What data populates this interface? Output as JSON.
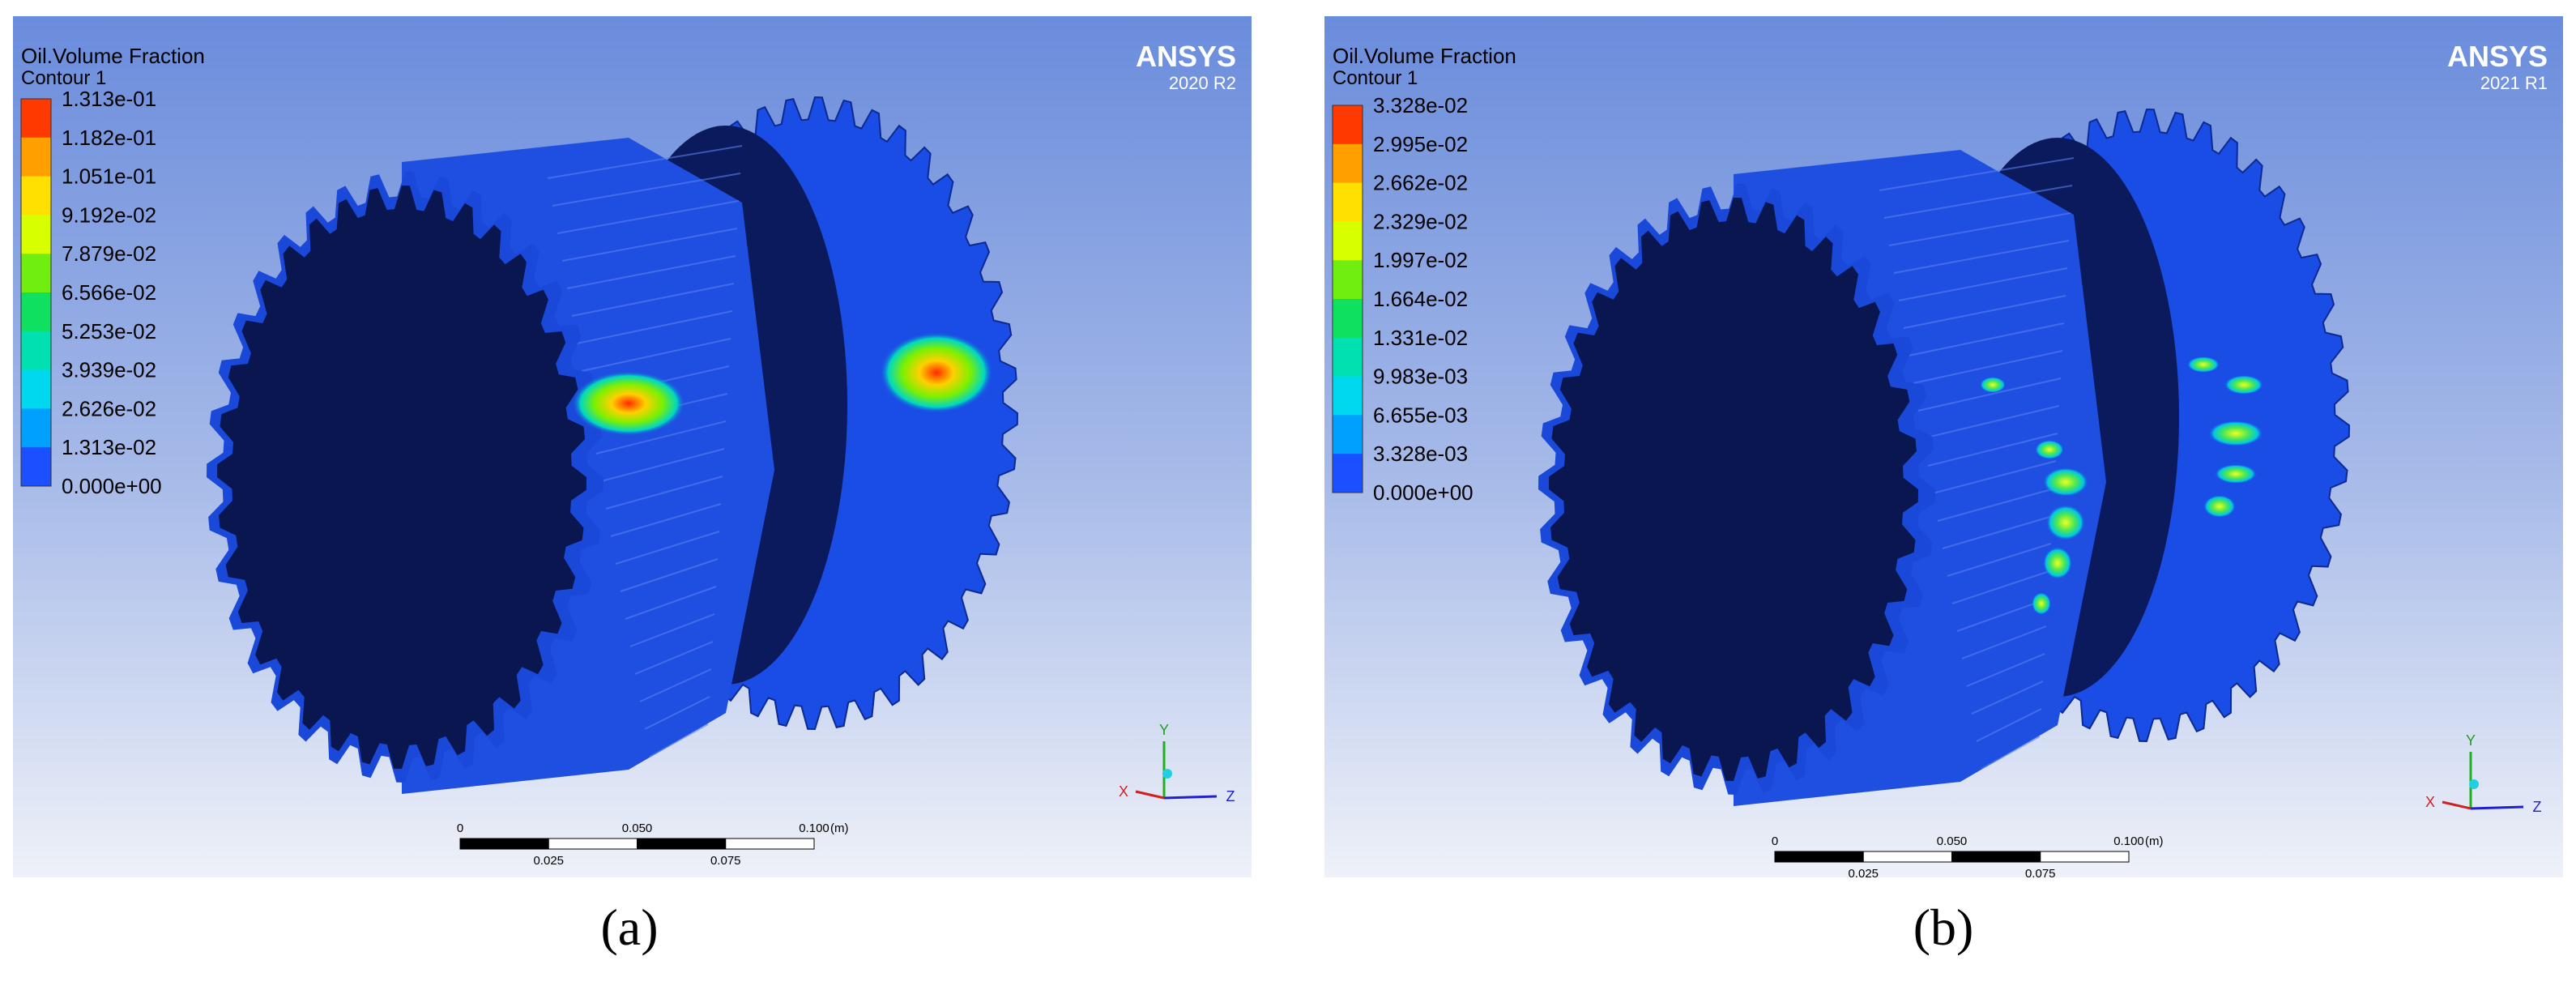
{
  "panels": [
    {
      "legend": {
        "title": "Oil.Volume Fraction",
        "contour": "Contour 1",
        "labels": [
          "1.313e-01",
          "1.182e-01",
          "1.051e-01",
          "9.192e-02",
          "7.879e-02",
          "6.566e-02",
          "5.253e-02",
          "3.939e-02",
          "2.626e-02",
          "1.313e-02",
          "0.000e+00"
        ]
      },
      "brand": "ANSYS",
      "version": "2020 R2",
      "scale": {
        "labels": [
          "0",
          "0.050",
          "0.100"
        ],
        "unit": "(m)",
        "minor_labels": [
          "0.025",
          "0.075"
        ]
      },
      "axes": {
        "y": "Y",
        "x": "X",
        "z": "Z"
      },
      "caption": "(a)"
    },
    {
      "legend": {
        "title": "Oil.Volume Fraction",
        "contour": "Contour 1",
        "labels": [
          "3.328e-02",
          "2.995e-02",
          "2.662e-02",
          "2.329e-02",
          "1.997e-02",
          "1.664e-02",
          "1.331e-02",
          "9.983e-03",
          "6.655e-03",
          "3.328e-03",
          "0.000e+00"
        ]
      },
      "brand": "ANSYS",
      "version": "2021 R1",
      "scale": {
        "labels": [
          "0",
          "0.050",
          "0.100"
        ],
        "unit": "(m)",
        "minor_labels": [
          "0.025",
          "0.075"
        ]
      },
      "axes": {
        "y": "Y",
        "x": "X",
        "z": "Z"
      },
      "caption": "(b)"
    }
  ]
}
